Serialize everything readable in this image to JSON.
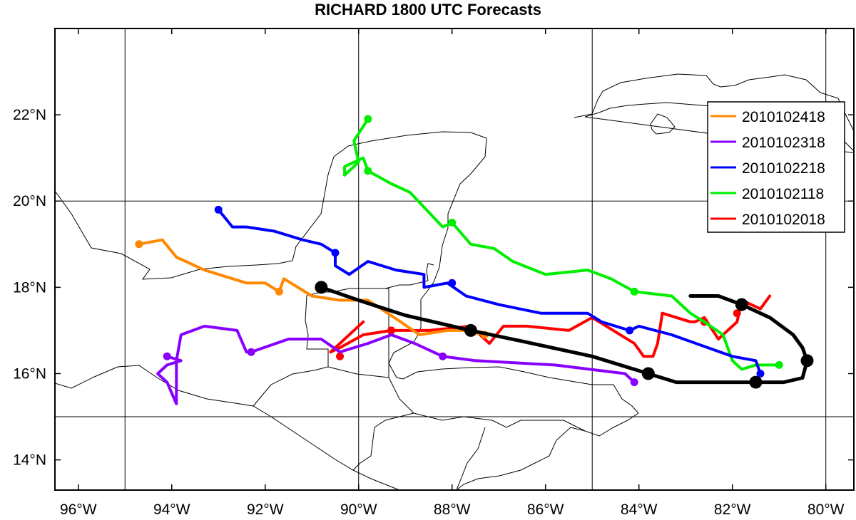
{
  "title": "RICHARD 1800 UTC Forecasts",
  "map": {
    "lon_range": [
      -96.5,
      -79.4
    ],
    "lat_range": [
      13.3,
      24.0
    ],
    "grid_lons": [
      -95,
      -90,
      -85,
      -80
    ],
    "grid_lats": [
      15,
      20
    ],
    "x_ticks": [
      {
        "lon": -96,
        "label": "96°W"
      },
      {
        "lon": -94,
        "label": "94°W"
      },
      {
        "lon": -92,
        "label": "92°W"
      },
      {
        "lon": -90,
        "label": "90°W"
      },
      {
        "lon": -88,
        "label": "88°W"
      },
      {
        "lon": -86,
        "label": "86°W"
      },
      {
        "lon": -84,
        "label": "84°W"
      },
      {
        "lon": -82,
        "label": "82°W"
      },
      {
        "lon": -80,
        "label": "80°W"
      }
    ],
    "y_ticks": [
      {
        "lat": 14,
        "label": "14°N"
      },
      {
        "lat": 16,
        "label": "16°N"
      },
      {
        "lat": 18,
        "label": "18°N"
      },
      {
        "lat": 20,
        "label": "20°N"
      },
      {
        "lat": 22,
        "label": "22°N"
      }
    ],
    "legend_position": "top-right"
  },
  "chart_data": {
    "type": "line",
    "title": "RICHARD 1800 UTC Forecasts",
    "xlabel": "",
    "ylabel": "",
    "best_track": {
      "color": "#000000",
      "points": [
        [
          -82.9,
          17.8
        ],
        [
          -82.3,
          17.8
        ],
        [
          -81.8,
          17.6
        ],
        [
          -81.2,
          17.3
        ],
        [
          -80.7,
          16.9
        ],
        [
          -80.5,
          16.6
        ],
        [
          -80.4,
          16.3
        ],
        [
          -80.5,
          15.9
        ],
        [
          -80.9,
          15.8
        ],
        [
          -81.5,
          15.8
        ],
        [
          -82.5,
          15.8
        ],
        [
          -83.2,
          15.8
        ],
        [
          -83.8,
          16.0
        ],
        [
          -85.0,
          16.4
        ],
        [
          -86.5,
          16.75
        ],
        [
          -87.6,
          17.0
        ],
        [
          -89.0,
          17.35
        ],
        [
          -90.0,
          17.7
        ],
        [
          -90.8,
          18.0
        ]
      ],
      "markers": [
        [
          -81.8,
          17.6
        ],
        [
          -80.4,
          16.3
        ],
        [
          -81.5,
          15.8
        ],
        [
          -83.8,
          16.0
        ],
        [
          -87.6,
          17.0
        ],
        [
          -90.8,
          18.0
        ]
      ]
    },
    "series": [
      {
        "name": "2010102418",
        "color": "#ff8800",
        "points": [
          [
            -87.3,
            16.9
          ],
          [
            -87.7,
            17.0
          ],
          [
            -88.1,
            17.0
          ],
          [
            -88.7,
            16.9
          ],
          [
            -89.1,
            17.2
          ],
          [
            -89.8,
            17.7
          ],
          [
            -90.4,
            17.7
          ],
          [
            -91.0,
            17.8
          ],
          [
            -91.6,
            18.2
          ],
          [
            -91.7,
            17.9
          ],
          [
            -92.0,
            18.1
          ],
          [
            -92.4,
            18.1
          ],
          [
            -93.3,
            18.4
          ],
          [
            -93.9,
            18.7
          ],
          [
            -94.2,
            19.1
          ],
          [
            -94.7,
            19.0
          ]
        ],
        "markers": [
          [
            -87.3,
            16.9
          ],
          [
            -91.7,
            17.9
          ],
          [
            -94.7,
            19.0
          ]
        ]
      },
      {
        "name": "2010102318",
        "color": "#8800ff",
        "points": [
          [
            -84.1,
            15.8
          ],
          [
            -84.3,
            16.0
          ],
          [
            -85.8,
            16.2
          ],
          [
            -87.5,
            16.3
          ],
          [
            -88.2,
            16.4
          ],
          [
            -88.8,
            16.7
          ],
          [
            -89.3,
            16.9
          ],
          [
            -89.8,
            16.7
          ],
          [
            -90.4,
            16.5
          ],
          [
            -90.8,
            16.8
          ],
          [
            -91.5,
            16.8
          ],
          [
            -92.3,
            16.5
          ],
          [
            -92.4,
            16.5
          ],
          [
            -92.6,
            17.0
          ],
          [
            -93.3,
            17.1
          ],
          [
            -93.8,
            16.9
          ],
          [
            -93.9,
            16.3
          ],
          [
            -93.9,
            15.3
          ],
          [
            -94.1,
            15.8
          ],
          [
            -94.3,
            16.0
          ],
          [
            -94.1,
            16.2
          ],
          [
            -93.8,
            16.3
          ],
          [
            -94.1,
            16.4
          ]
        ],
        "markers": [
          [
            -84.1,
            15.8
          ],
          [
            -88.2,
            16.4
          ],
          [
            -92.3,
            16.5
          ],
          [
            -94.1,
            16.4
          ]
        ]
      },
      {
        "name": "2010102218",
        "color": "#0000ff",
        "points": [
          [
            -81.4,
            16.0
          ],
          [
            -81.5,
            16.3
          ],
          [
            -82.0,
            16.4
          ],
          [
            -83.3,
            16.9
          ],
          [
            -84.0,
            17.1
          ],
          [
            -84.2,
            17.0
          ],
          [
            -84.8,
            17.2
          ],
          [
            -85.1,
            17.4
          ],
          [
            -86.1,
            17.4
          ],
          [
            -87.0,
            17.6
          ],
          [
            -87.7,
            17.8
          ],
          [
            -88.1,
            18.1
          ],
          [
            -88.6,
            18.0
          ],
          [
            -88.6,
            18.3
          ],
          [
            -89.2,
            18.4
          ],
          [
            -89.8,
            18.6
          ],
          [
            -90.2,
            18.3
          ],
          [
            -90.5,
            18.5
          ],
          [
            -90.5,
            18.8
          ],
          [
            -90.8,
            19.0
          ],
          [
            -91.2,
            19.1
          ],
          [
            -91.8,
            19.3
          ],
          [
            -92.4,
            19.4
          ],
          [
            -92.7,
            19.4
          ],
          [
            -93.0,
            19.8
          ]
        ],
        "markers": [
          [
            -81.4,
            16.0
          ],
          [
            -84.2,
            17.0
          ],
          [
            -88.0,
            18.1
          ],
          [
            -90.5,
            18.8
          ],
          [
            -93.0,
            19.8
          ]
        ]
      },
      {
        "name": "2010102118",
        "color": "#00ee00",
        "points": [
          [
            -81.0,
            16.2
          ],
          [
            -81.3,
            16.2
          ],
          [
            -81.5,
            16.2
          ],
          [
            -81.8,
            16.1
          ],
          [
            -82.0,
            16.3
          ],
          [
            -82.2,
            16.9
          ],
          [
            -82.6,
            17.2
          ],
          [
            -82.9,
            17.4
          ],
          [
            -83.3,
            17.8
          ],
          [
            -84.1,
            17.9
          ],
          [
            -84.6,
            18.2
          ],
          [
            -85.1,
            18.4
          ],
          [
            -86.0,
            18.3
          ],
          [
            -86.7,
            18.6
          ],
          [
            -87.1,
            18.9
          ],
          [
            -87.6,
            19.0
          ],
          [
            -88.0,
            19.5
          ],
          [
            -88.2,
            19.4
          ],
          [
            -88.9,
            20.2
          ],
          [
            -89.3,
            20.4
          ],
          [
            -89.8,
            20.7
          ],
          [
            -89.9,
            21.0
          ],
          [
            -90.3,
            20.8
          ],
          [
            -90.3,
            20.6
          ],
          [
            -90.0,
            20.9
          ],
          [
            -90.1,
            21.4
          ],
          [
            -89.8,
            21.9
          ]
        ],
        "markers": [
          [
            -81.0,
            16.2
          ],
          [
            -84.1,
            17.9
          ],
          [
            -88.0,
            19.5
          ],
          [
            -89.8,
            20.7
          ],
          [
            -89.8,
            21.9
          ]
        ]
      },
      {
        "name": "2010102018",
        "color": "#ff0000",
        "points": [
          [
            -81.2,
            17.8
          ],
          [
            -81.4,
            17.5
          ],
          [
            -81.8,
            17.7
          ],
          [
            -81.9,
            17.2
          ],
          [
            -82.3,
            16.8
          ],
          [
            -82.6,
            17.3
          ],
          [
            -82.8,
            17.2
          ],
          [
            -82.9,
            17.2
          ],
          [
            -83.5,
            17.4
          ],
          [
            -83.6,
            16.7
          ],
          [
            -83.7,
            16.4
          ],
          [
            -83.9,
            16.4
          ],
          [
            -84.1,
            16.7
          ],
          [
            -85.0,
            17.3
          ],
          [
            -85.5,
            17.0
          ],
          [
            -86.4,
            17.1
          ],
          [
            -86.9,
            17.1
          ],
          [
            -87.2,
            16.7
          ],
          [
            -87.6,
            17.1
          ],
          [
            -88.5,
            17.0
          ],
          [
            -89.3,
            17.0
          ],
          [
            -89.9,
            16.9
          ],
          [
            -90.4,
            16.6
          ],
          [
            -90.6,
            16.5
          ],
          [
            -89.9,
            17.2
          ]
        ],
        "markers": [
          [
            -81.9,
            17.4
          ],
          [
            -82.6,
            17.2
          ],
          [
            -89.3,
            17.0
          ],
          [
            -90.4,
            16.4
          ]
        ]
      }
    ]
  }
}
